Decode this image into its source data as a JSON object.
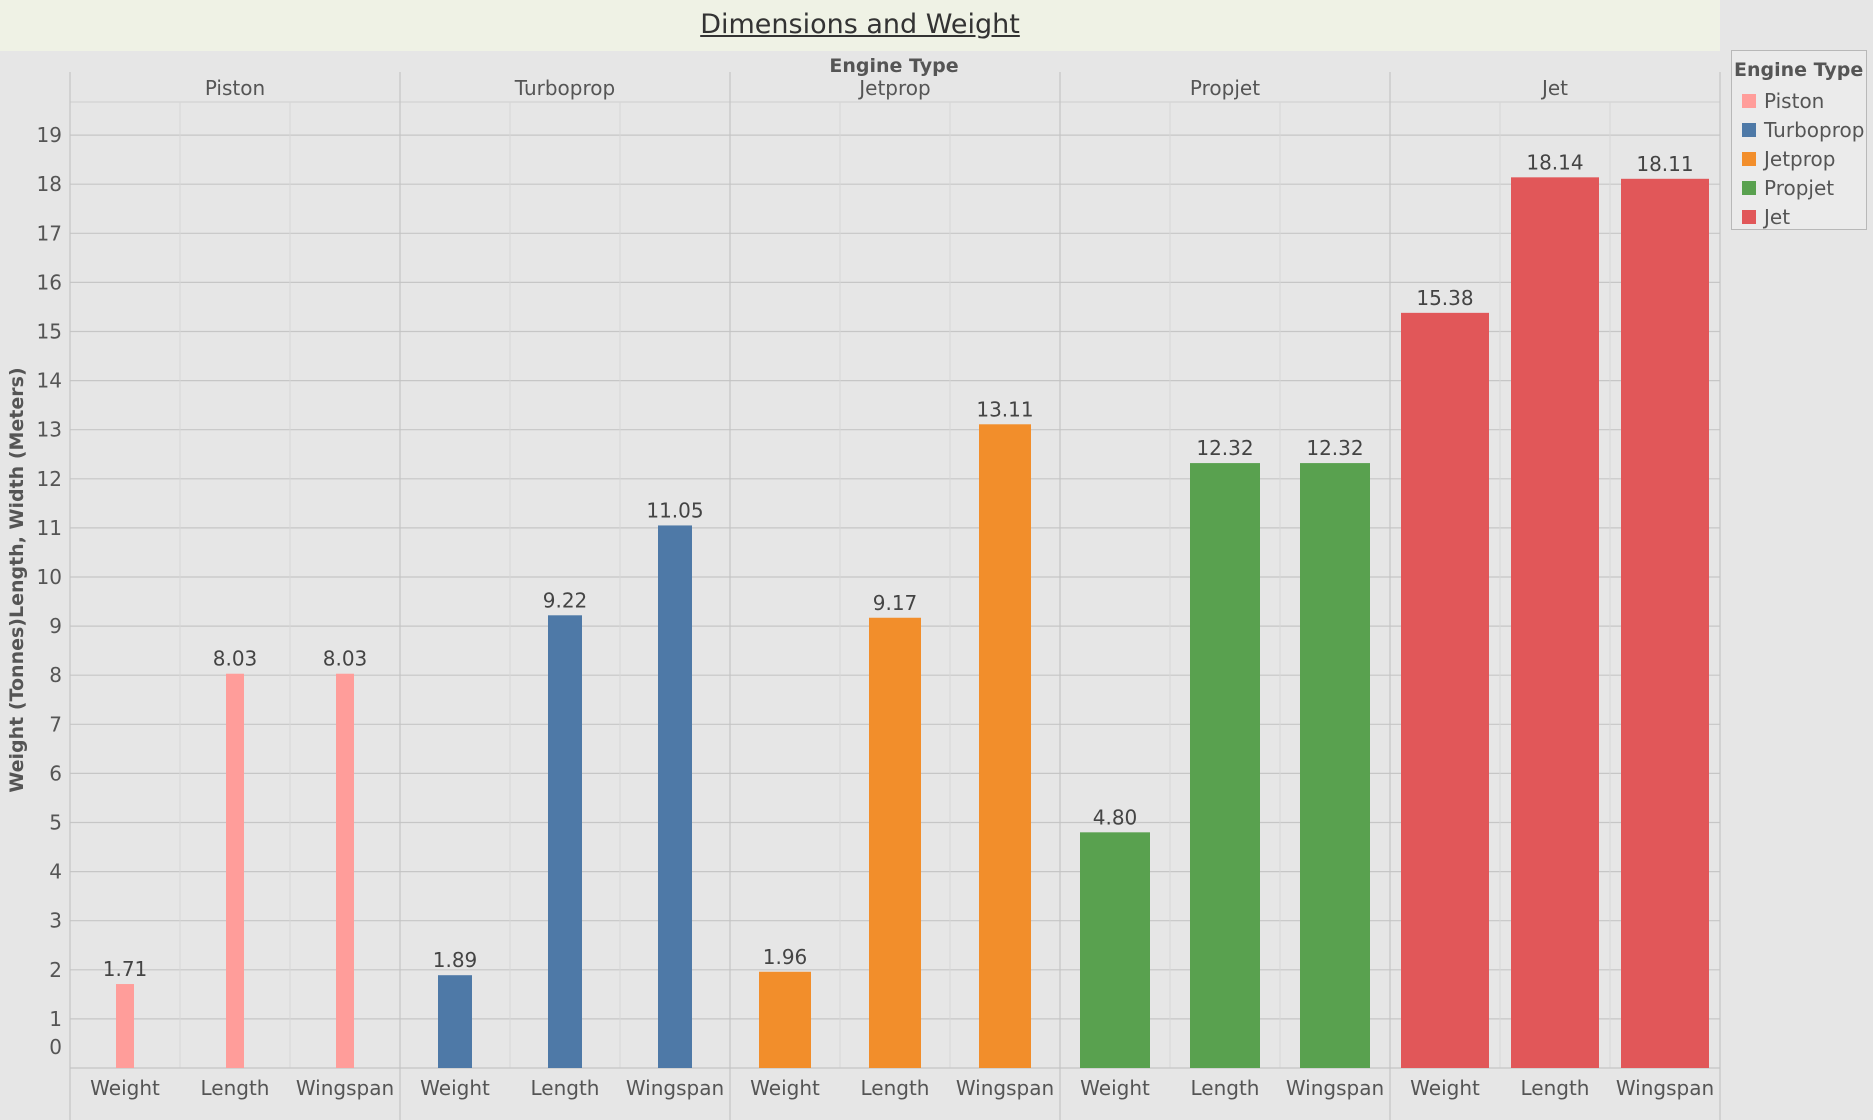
{
  "page": {
    "background": "#e6e6e6",
    "title_band": "#eff2e5"
  },
  "chart_data": {
    "type": "bar",
    "title": "Dimensions and Weight",
    "column_header": "Engine Type",
    "ylabel": "Weight (Tonnes)Length, Width (Meters)",
    "ylim": [
      0,
      20
    ],
    "yticks": [
      0,
      1,
      2,
      3,
      4,
      5,
      6,
      7,
      8,
      9,
      10,
      11,
      12,
      13,
      14,
      15,
      16,
      17,
      18,
      19
    ],
    "grid": true,
    "legend": {
      "title": "Engine Type",
      "position": "top-right",
      "items": [
        {
          "label": "Piston",
          "color": "#ff9d9a"
        },
        {
          "label": "Turboprop",
          "color": "#4e79a7"
        },
        {
          "label": "Jetprop",
          "color": "#f28e2b"
        },
        {
          "label": "Propjet",
          "color": "#59a14f"
        },
        {
          "label": "Jet",
          "color": "#e15759"
        }
      ]
    },
    "measures": [
      "Weight",
      "Length",
      "Wingspan"
    ],
    "groups": [
      {
        "name": "Piston",
        "color": "#ff9d9a",
        "values": [
          1.71,
          8.03,
          8.03
        ],
        "labels": [
          "1.71",
          "8.03",
          "8.03"
        ]
      },
      {
        "name": "Turboprop",
        "color": "#4e79a7",
        "values": [
          1.89,
          9.22,
          11.05
        ],
        "labels": [
          "1.89",
          "9.22",
          "11.05"
        ]
      },
      {
        "name": "Jetprop",
        "color": "#f28e2b",
        "values": [
          1.96,
          9.17,
          13.11
        ],
        "labels": [
          "1.96",
          "9.17",
          "13.11"
        ]
      },
      {
        "name": "Propjet",
        "color": "#59a14f",
        "values": [
          4.8,
          12.32,
          12.32
        ],
        "labels": [
          "4.80",
          "12.32",
          "12.32"
        ]
      },
      {
        "name": "Jet",
        "color": "#e15759",
        "values": [
          15.38,
          18.14,
          18.11
        ],
        "labels": [
          "15.38",
          "18.14",
          "18.11"
        ]
      }
    ]
  }
}
